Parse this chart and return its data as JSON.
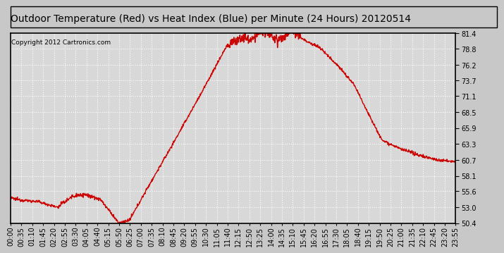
{
  "title": "Outdoor Temperature (Red) vs Heat Index (Blue) per Minute (24 Hours) 20120514",
  "copyright": "Copyright 2012 Cartronics.com",
  "line_color": "#cc0000",
  "background_color": "#c8c8c8",
  "plot_bg_color": "#d8d8d8",
  "grid_color": "#ffffff",
  "border_color": "#000000",
  "y_min": 50.4,
  "y_max": 81.4,
  "y_ticks": [
    50.4,
    53.0,
    55.6,
    58.1,
    60.7,
    63.3,
    65.9,
    68.5,
    71.1,
    73.7,
    76.2,
    78.8,
    81.4
  ],
  "x_labels": [
    "00:00",
    "00:35",
    "01:10",
    "01:45",
    "02:20",
    "02:55",
    "03:30",
    "04:05",
    "04:40",
    "05:15",
    "05:50",
    "06:25",
    "07:00",
    "07:35",
    "08:10",
    "08:45",
    "09:20",
    "09:55",
    "10:30",
    "11:05",
    "11:40",
    "12:15",
    "12:50",
    "13:25",
    "14:00",
    "14:35",
    "15:10",
    "15:45",
    "16:20",
    "16:55",
    "17:30",
    "18:05",
    "18:40",
    "19:15",
    "19:50",
    "20:25",
    "21:00",
    "21:35",
    "22:10",
    "22:45",
    "23:20",
    "23:55"
  ],
  "title_fontsize": 10,
  "copyright_fontsize": 6.5,
  "tick_fontsize": 7,
  "line_width": 1.0
}
